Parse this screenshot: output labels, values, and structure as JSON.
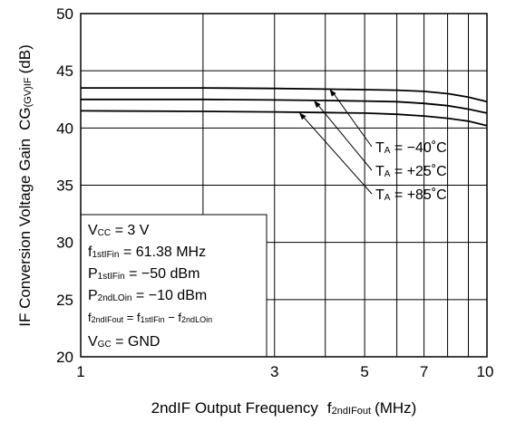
{
  "chart_data": {
    "type": "line",
    "xlabel_main": "2ndIF Output Frequency",
    "xlabel_sym": "f",
    "xlabel_sub": "2ndIFout",
    "xlabel_unit": "(MHz)",
    "ylabel_main": "IF Conversion Voltage Gain",
    "ylabel_sym": "CG",
    "ylabel_sub": "(GV)IF",
    "ylabel_unit": "(dB)",
    "x_scale": "log",
    "xlim": [
      1,
      10
    ],
    "ylim": [
      20,
      50
    ],
    "grid": true,
    "x_ticks": [
      "1",
      "3",
      "5",
      "7",
      "10"
    ],
    "x_tick_values": [
      1,
      3,
      5,
      7,
      10
    ],
    "y_ticks": [
      "20",
      "25",
      "30",
      "35",
      "40",
      "45",
      "50"
    ],
    "y_tick_values": [
      20,
      25,
      30,
      35,
      40,
      45,
      50
    ],
    "series": [
      {
        "name": "TA = −40˚C",
        "x": [
          1,
          2,
          3,
          4,
          5,
          6,
          7,
          8,
          9,
          10
        ],
        "y": [
          43.5,
          43.5,
          43.45,
          43.4,
          43.35,
          43.3,
          43.2,
          43.0,
          42.7,
          42.3
        ]
      },
      {
        "name": "TA = +25˚C",
        "x": [
          1,
          2,
          3,
          4,
          5,
          6,
          7,
          8,
          9,
          10
        ],
        "y": [
          42.5,
          42.5,
          42.45,
          42.4,
          42.35,
          42.3,
          42.15,
          41.95,
          41.65,
          41.3
        ]
      },
      {
        "name": "TA = +85˚C",
        "x": [
          1,
          2,
          3,
          4,
          5,
          6,
          7,
          8,
          9,
          10
        ],
        "y": [
          41.5,
          41.45,
          41.4,
          41.35,
          41.3,
          41.2,
          41.05,
          40.85,
          40.6,
          40.2
        ]
      }
    ],
    "legend": [
      {
        "pre": "T",
        "sub": "A",
        "post": " = −40˚C"
      },
      {
        "pre": "T",
        "sub": "A",
        "post": " = +25˚C"
      },
      {
        "pre": "T",
        "sub": "A",
        "post": " = +85˚C"
      }
    ],
    "conditions": [
      {
        "pre": "V",
        "sub": "CC",
        "post": " = 3 V"
      },
      {
        "pre": "f",
        "sub": "1stIFin",
        "post": " = 61.38 MHz"
      },
      {
        "pre": "P",
        "sub": "1stIFin",
        "post": " = −50 dBm"
      },
      {
        "pre": "P",
        "sub": "2ndLOin",
        "post": " = −10 dBm"
      },
      {
        "pre": "f",
        "sub": "2ndIFout",
        "mid": " = f",
        "sub2": "1stIFin",
        "mid2": " − f",
        "sub3": "2ndLOin"
      },
      {
        "pre": "V",
        "sub": "GC",
        "post": " = GND"
      }
    ]
  }
}
